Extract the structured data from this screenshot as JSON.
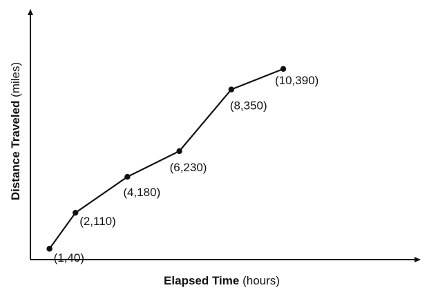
{
  "chart_data": {
    "type": "line",
    "xlabel": "Elapsed Time",
    "xlabel_unit": "(hours)",
    "ylabel": "Distance Traveled",
    "ylabel_unit": "(miles)",
    "grid": false,
    "xlim": [
      0,
      11
    ],
    "ylim": [
      0,
      445
    ],
    "series": [
      {
        "points": [
          {
            "x": 1,
            "y": 40,
            "label": "(1,40)"
          },
          {
            "x": 2,
            "y": 110,
            "label": "(2,110)"
          },
          {
            "x": 4,
            "y": 180,
            "label": "(4,180)"
          },
          {
            "x": 6,
            "y": 230,
            "label": "(6,230)"
          },
          {
            "x": 8,
            "y": 350,
            "label": "(8,350)"
          },
          {
            "x": 10,
            "y": 390,
            "label": "(10,390)"
          }
        ]
      }
    ]
  }
}
